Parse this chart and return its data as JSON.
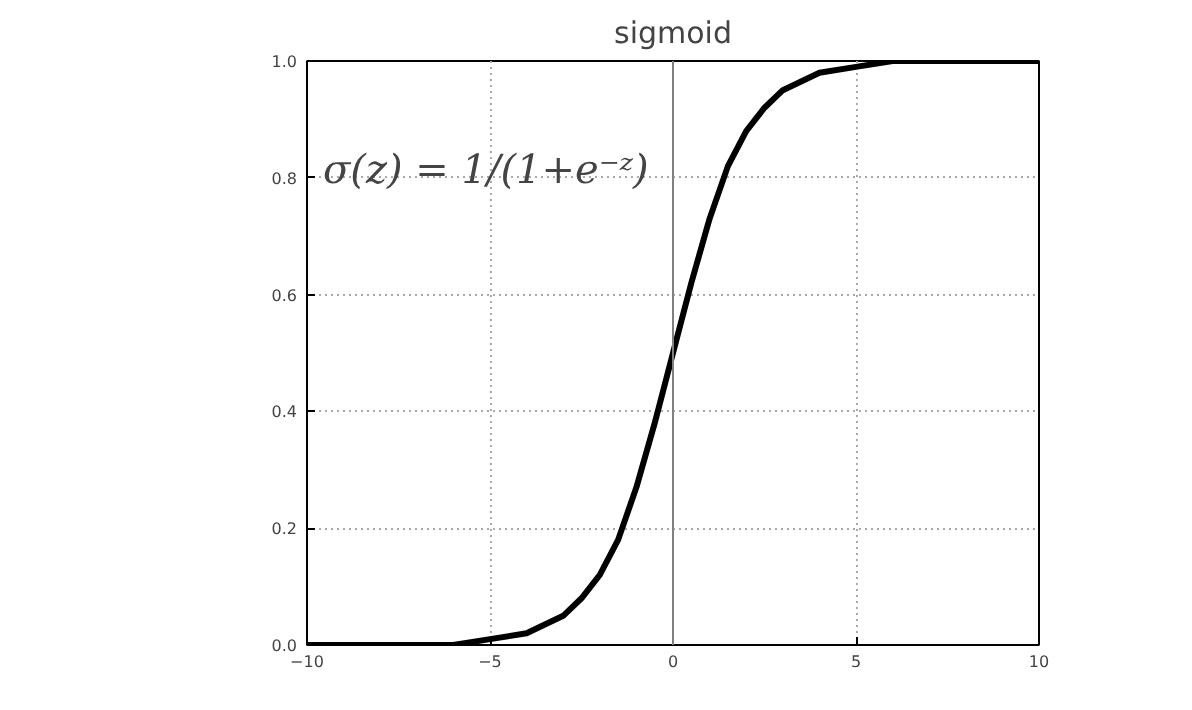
{
  "chart_data": {
    "type": "line",
    "title": "sigmoid",
    "annotations": [
      "σ(z) = 1/(1+e⁻ᶻ)"
    ],
    "x": [
      -10,
      -8,
      -6,
      -5,
      -4,
      -3,
      -2.5,
      -2,
      -1.5,
      -1,
      -0.5,
      0,
      0.5,
      1,
      1.5,
      2,
      2.5,
      3,
      4,
      5,
      6,
      8,
      10
    ],
    "series": [
      {
        "color": "#000000",
        "values": [
          0.0,
          0.0,
          0.0,
          0.01,
          0.02,
          0.05,
          0.08,
          0.12,
          0.18,
          0.27,
          0.38,
          0.5,
          0.62,
          0.73,
          0.82,
          0.88,
          0.92,
          0.95,
          0.98,
          0.99,
          1.0,
          1.0,
          1.0
        ]
      }
    ],
    "xlim": [
      -10,
      10
    ],
    "ylim": [
      0,
      1
    ],
    "xticks": [
      -10,
      -5,
      0,
      5,
      10
    ],
    "yticks": [
      {
        "value": 0,
        "label": "0.0"
      },
      {
        "value": 0.2,
        "label": "0.2"
      },
      {
        "value": 0.4,
        "label": "0.4"
      },
      {
        "value": 0.6,
        "label": "0.6"
      },
      {
        "value": 0.8,
        "label": "0.8"
      },
      {
        "value": 1,
        "label": "1.0"
      }
    ],
    "ref_lines": [
      {
        "axis": "x",
        "value": 0,
        "color": "#808080"
      }
    ],
    "grid": true,
    "marker": "none",
    "line_style": "solid"
  }
}
